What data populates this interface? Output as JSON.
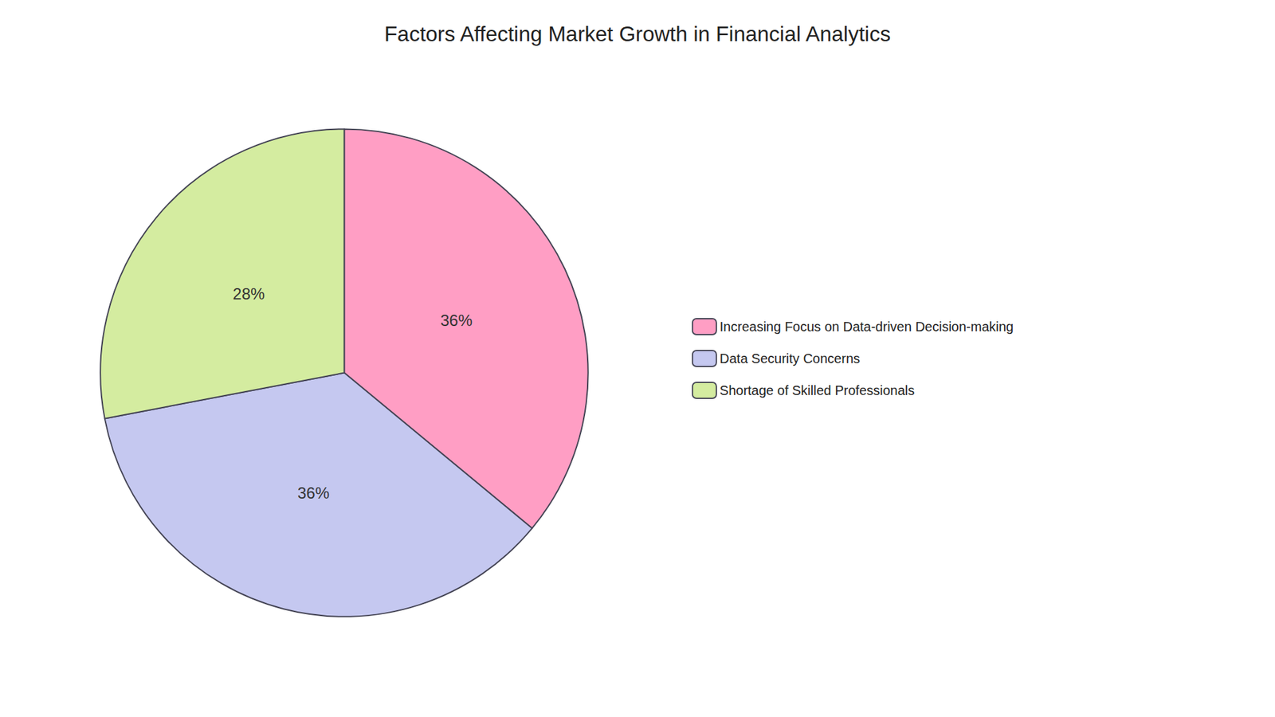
{
  "chart_data": {
    "type": "pie",
    "title": "Factors Affecting Market Growth in Financial Analytics",
    "categories": [
      "Increasing Focus on Data-driven Decision-making",
      "Data Security Concerns",
      "Shortage of Skilled Professionals"
    ],
    "values": [
      36,
      36,
      28
    ],
    "value_labels": [
      "36%",
      "36%",
      "28%"
    ],
    "colors": [
      "#FF9EC4",
      "#C5C8F0",
      "#D4ECA0"
    ],
    "data_labels": true,
    "legend": "right"
  }
}
